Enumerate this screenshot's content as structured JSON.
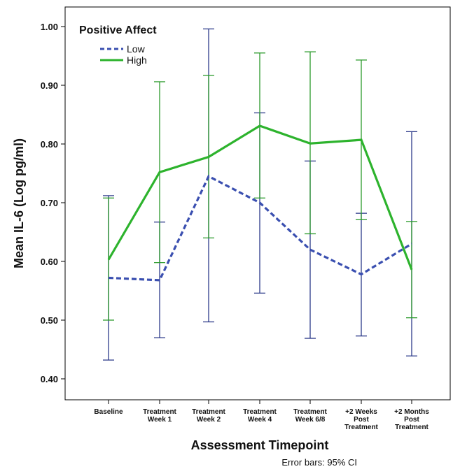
{
  "chart_data": {
    "type": "line",
    "xlabel": "Assessment Timepoint",
    "ylabel": "Mean IL-6 (Log pg/ml)",
    "ylim": [
      0.4,
      1.0
    ],
    "yticks": [
      "0.40",
      "0.50",
      "0.60",
      "0.70",
      "0.80",
      "0.90",
      "1.00"
    ],
    "categories": [
      [
        "Baseline"
      ],
      [
        "Treatment",
        "Week 1"
      ],
      [
        "Treatment",
        "Week 2"
      ],
      [
        "Treatment",
        "Week 4"
      ],
      [
        "Treatment",
        "Week 6/8"
      ],
      [
        "+2 Weeks",
        "Post",
        "Treatment"
      ],
      [
        "+2 Months",
        "Post",
        "Treatment"
      ]
    ],
    "legend": {
      "title": "Positive Affect",
      "position": "top-left"
    },
    "series": [
      {
        "name": "Low",
        "color": "#3a4fb0",
        "style": "dashed",
        "values": [
          0.572,
          0.568,
          0.745,
          0.7,
          0.62,
          0.578,
          0.63
        ],
        "ci_low": [
          0.432,
          0.47,
          0.497,
          0.546,
          0.469,
          0.473,
          0.439
        ],
        "ci_high": [
          0.712,
          0.667,
          0.996,
          0.853,
          0.771,
          0.682,
          0.821
        ]
      },
      {
        "name": "High",
        "color": "#2db32d",
        "style": "solid",
        "values": [
          0.603,
          0.752,
          0.778,
          0.831,
          0.801,
          0.807,
          0.586
        ],
        "ci_low": [
          0.5,
          0.598,
          0.64,
          0.708,
          0.647,
          0.671,
          0.504
        ],
        "ci_high": [
          0.708,
          0.906,
          0.917,
          0.955,
          0.957,
          0.943,
          0.668
        ]
      }
    ],
    "note": "Error bars: 95% CI"
  }
}
